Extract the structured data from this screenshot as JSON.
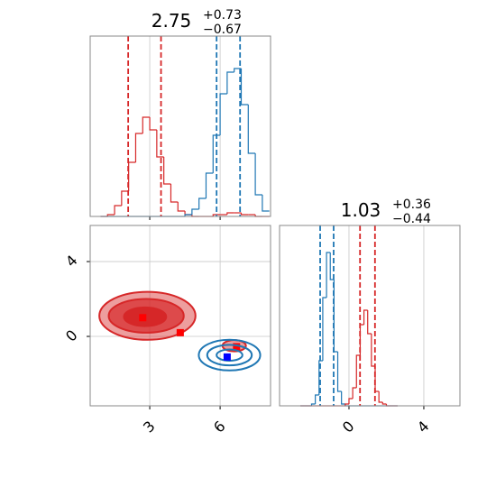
{
  "chart_data": [
    {
      "type": "histogram",
      "title": {
        "value": "2.75",
        "plus": "+0.73",
        "minus": "−0.67"
      },
      "bins": [
        0.9,
        1.2,
        1.5,
        1.8,
        2.1,
        2.4,
        2.7,
        3.0,
        3.3,
        3.6,
        3.9,
        4.2,
        4.5,
        4.8,
        5.1,
        5.4,
        5.7,
        6.0,
        6.3,
        6.6,
        6.9,
        7.2,
        7.5,
        7.8,
        8.1
      ],
      "series": [
        {
          "color": "#d62728",
          "values": [
            0,
            1,
            6,
            14,
            30,
            46,
            55,
            48,
            33,
            18,
            8,
            3,
            1,
            0,
            0,
            0,
            1,
            1,
            2,
            2,
            1,
            1,
            0,
            0
          ],
          "quantiles": [
            2.08,
            3.48
          ]
        },
        {
          "color": "#1f77b4",
          "values": [
            0,
            0,
            0,
            0,
            0,
            0,
            0,
            0,
            0,
            0,
            0,
            0,
            1,
            4,
            10,
            24,
            45,
            68,
            80,
            82,
            62,
            35,
            12,
            3
          ],
          "quantiles": [
            5.85,
            6.85
          ]
        }
      ],
      "xlim": [
        0.46,
        8.15
      ],
      "ylim": [
        0,
        100
      ],
      "xticks": [
        3,
        6
      ],
      "tick_labels": false,
      "grid": true
    },
    {
      "type": "contour",
      "xlim": [
        0.46,
        8.15
      ],
      "ylim": [
        -3.71,
        5.93
      ],
      "xticks": [
        3,
        6
      ],
      "yticks": [
        0,
        4
      ],
      "tick_labels": true,
      "grid": true,
      "series": [
        {
          "color": "#d62728",
          "filled": true,
          "contours": [
            {
              "cx": 2.9,
              "cy": 1.1,
              "rx": 2.05,
              "ry": 1.28
            },
            {
              "cx": 2.85,
              "cy": 1.1,
              "rx": 1.6,
              "ry": 0.9
            },
            {
              "cx": 2.8,
              "cy": 1.05,
              "rx": 0.9,
              "ry": 0.5
            },
            {
              "cx": 6.6,
              "cy": -0.5,
              "rx": 0.5,
              "ry": 0.3
            }
          ],
          "markers": [
            [
              2.7,
              1.0
            ],
            [
              4.3,
              0.2
            ],
            [
              6.7,
              -0.55
            ]
          ]
        },
        {
          "color": "#1f77b4",
          "filled": false,
          "contours": [
            {
              "cx": 6.4,
              "cy": -1.0,
              "rx": 1.31,
              "ry": 0.82
            },
            {
              "cx": 6.4,
              "cy": -1.0,
              "rx": 0.95,
              "ry": 0.55
            },
            {
              "cx": 6.4,
              "cy": -1.0,
              "rx": 0.55,
              "ry": 0.3
            }
          ],
          "markers": [
            [
              6.3,
              -1.1
            ]
          ]
        }
      ]
    },
    {
      "type": "histogram",
      "title": {
        "value": "1.03",
        "plus": "+0.36",
        "minus": "−0.44"
      },
      "bins": [
        -2.6,
        -2.4,
        -2.2,
        -2.0,
        -1.8,
        -1.6,
        -1.4,
        -1.2,
        -1.0,
        -0.8,
        -0.6,
        -0.4,
        -0.2,
        0.0,
        0.2,
        0.4,
        0.6,
        0.8,
        1.0,
        1.2,
        1.4,
        1.6,
        1.8,
        2.0,
        2.2,
        2.4,
        2.6
      ],
      "series": [
        {
          "color": "#1f77b4",
          "values": [
            0,
            0,
            0,
            1,
            6,
            25,
            60,
            85,
            70,
            30,
            8,
            1,
            0,
            0,
            0,
            0,
            0,
            0,
            0,
            0,
            0,
            0,
            0,
            0,
            0,
            0
          ],
          "quantiles": [
            -1.54,
            -0.82
          ]
        },
        {
          "color": "#d62728",
          "values": [
            0,
            0,
            0,
            0,
            0,
            0,
            0,
            0,
            0,
            0,
            0,
            0,
            1,
            4,
            10,
            28,
            45,
            53,
            40,
            22,
            8,
            2,
            1,
            0,
            0,
            0
          ],
          "quantiles": [
            0.59,
            1.39
          ]
        }
      ],
      "xlim": [
        -3.71,
        5.93
      ],
      "ylim": [
        0,
        100
      ],
      "xticks": [
        0,
        4
      ],
      "tick_labels": true,
      "grid": true
    }
  ]
}
